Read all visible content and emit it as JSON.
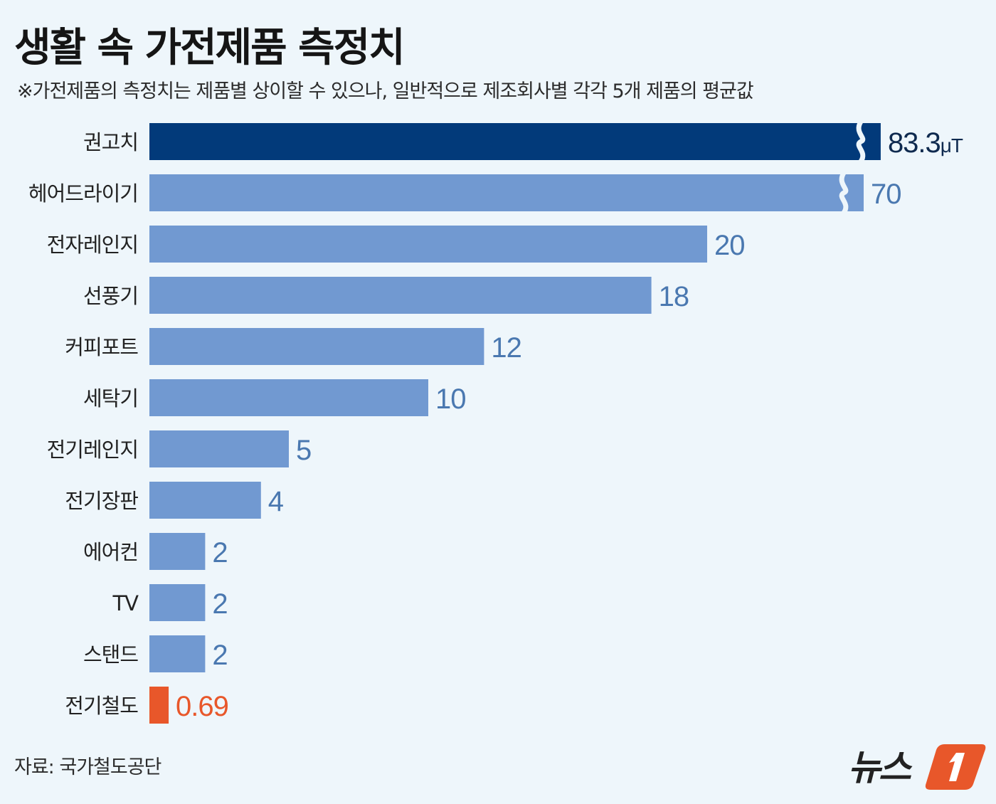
{
  "title": "생활 속 가전제품 측정치",
  "subtitle": "※가전제품의 측정치는 제품별 상이할 수 있으나, 일반적으로 제조회사별 각각 5개 제품의 평균값",
  "source": "자료: 국가철도공단",
  "logo_text": "뉴스1",
  "colors": {
    "recommended": "#023a7a",
    "default": "#7199d1",
    "highlight": "#e8572a",
    "label": "#4a78b0",
    "recommended_label": "#0f2a4f"
  },
  "chart_data": {
    "type": "bar",
    "orientation": "horizontal",
    "unit": "μT",
    "axis_break": true,
    "categories": [
      "권고치",
      "헤어드라이기",
      "전자레인지",
      "선풍기",
      "커피포트",
      "세탁기",
      "전기레인지",
      "전기장판",
      "에어컨",
      "TV",
      "스탠드",
      "전기철도"
    ],
    "values": [
      83.3,
      70,
      20,
      18,
      12,
      10,
      5,
      4,
      2,
      2,
      2,
      0.69
    ],
    "value_labels": [
      "83.3",
      "70",
      "20",
      "18",
      "12",
      "10",
      "5",
      "4",
      "2",
      "2",
      "2",
      "0.69"
    ],
    "grid": false,
    "legend": "none"
  }
}
